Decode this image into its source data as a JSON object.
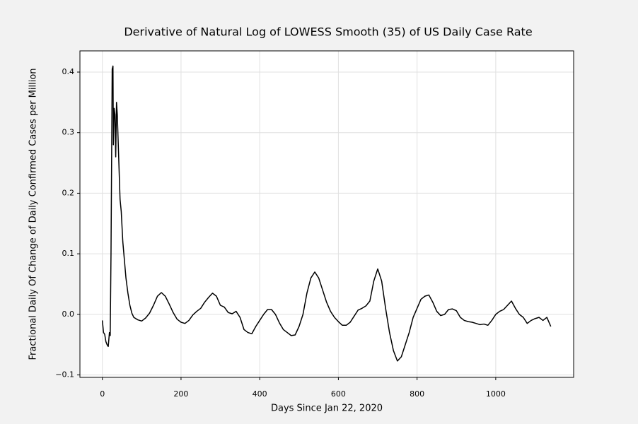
{
  "chart_data": {
    "type": "line",
    "title": "Derivative of Natural Log of LOWESS Smooth (35) of US Daily Case Rate",
    "x_label": "Days Since Jan 22, 2020",
    "y_label": "Fractional Daily Of Change of Daily Confirmed Cases per Million",
    "color": "#000000",
    "grid": true,
    "xlim": [
      -57,
      1198
    ],
    "xticks": [
      0,
      200,
      400,
      600,
      800,
      1000
    ],
    "ylim": [
      -0.104,
      0.435
    ],
    "yticks": [
      {
        "value": -0.1,
        "label": "−0.1"
      },
      {
        "value": 0,
        "label": "0.0"
      },
      0.1,
      0.2,
      0.3,
      0.4
    ],
    "x": [
      0,
      3,
      6,
      9,
      12,
      15,
      18,
      20,
      22,
      24,
      25,
      27,
      28,
      30,
      32,
      34,
      36,
      38,
      40,
      42,
      45,
      48,
      52,
      56,
      60,
      65,
      70,
      75,
      80,
      90,
      100,
      110,
      120,
      130,
      140,
      150,
      160,
      170,
      180,
      190,
      200,
      210,
      220,
      230,
      240,
      250,
      260,
      270,
      280,
      290,
      300,
      310,
      320,
      330,
      340,
      350,
      360,
      370,
      380,
      390,
      400,
      410,
      420,
      430,
      440,
      450,
      460,
      470,
      480,
      490,
      500,
      510,
      520,
      530,
      540,
      550,
      560,
      570,
      580,
      590,
      600,
      610,
      620,
      630,
      640,
      650,
      660,
      670,
      680,
      690,
      700,
      710,
      720,
      730,
      740,
      750,
      760,
      770,
      780,
      790,
      800,
      810,
      820,
      830,
      840,
      850,
      860,
      870,
      880,
      890,
      900,
      910,
      920,
      930,
      940,
      950,
      960,
      970,
      980,
      990,
      1000,
      1010,
      1020,
      1030,
      1040,
      1050,
      1060,
      1070,
      1080,
      1090,
      1100,
      1110,
      1120,
      1130,
      1140
    ],
    "values": [
      -0.01,
      -0.03,
      -0.033,
      -0.045,
      -0.05,
      -0.053,
      -0.03,
      -0.035,
      0.1,
      0.3,
      0.405,
      0.41,
      0.28,
      0.34,
      0.33,
      0.26,
      0.35,
      0.33,
      0.29,
      0.25,
      0.19,
      0.17,
      0.12,
      0.09,
      0.06,
      0.035,
      0.015,
      0.002,
      -0.005,
      -0.009,
      -0.011,
      -0.006,
      0.002,
      0.015,
      0.03,
      0.036,
      0.03,
      0.017,
      0.003,
      -0.008,
      -0.013,
      -0.015,
      -0.01,
      -0.001,
      0.005,
      0.01,
      0.02,
      0.028,
      0.035,
      0.03,
      0.015,
      0.012,
      0.003,
      0.001,
      0.005,
      -0.005,
      -0.025,
      -0.03,
      -0.032,
      -0.02,
      -0.01,
      0.0,
      0.008,
      0.008,
      0.0,
      -0.014,
      -0.025,
      -0.03,
      -0.035,
      -0.034,
      -0.02,
      0.0,
      0.035,
      0.06,
      0.07,
      0.06,
      0.04,
      0.02,
      0.005,
      -0.005,
      -0.012,
      -0.018,
      -0.018,
      -0.013,
      -0.003,
      0.007,
      0.01,
      0.014,
      0.022,
      0.055,
      0.075,
      0.055,
      0.01,
      -0.03,
      -0.06,
      -0.077,
      -0.07,
      -0.05,
      -0.03,
      -0.005,
      0.01,
      0.025,
      0.03,
      0.032,
      0.02,
      0.005,
      -0.002,
      0.0,
      0.008,
      0.009,
      0.006,
      -0.005,
      -0.01,
      -0.012,
      -0.013,
      -0.015,
      -0.017,
      -0.016,
      -0.018,
      -0.01,
      0.0,
      0.005,
      0.008,
      0.015,
      0.022,
      0.01,
      0.0,
      -0.005,
      -0.015,
      -0.01,
      -0.007,
      -0.005,
      -0.01,
      -0.005,
      -0.02
    ]
  }
}
